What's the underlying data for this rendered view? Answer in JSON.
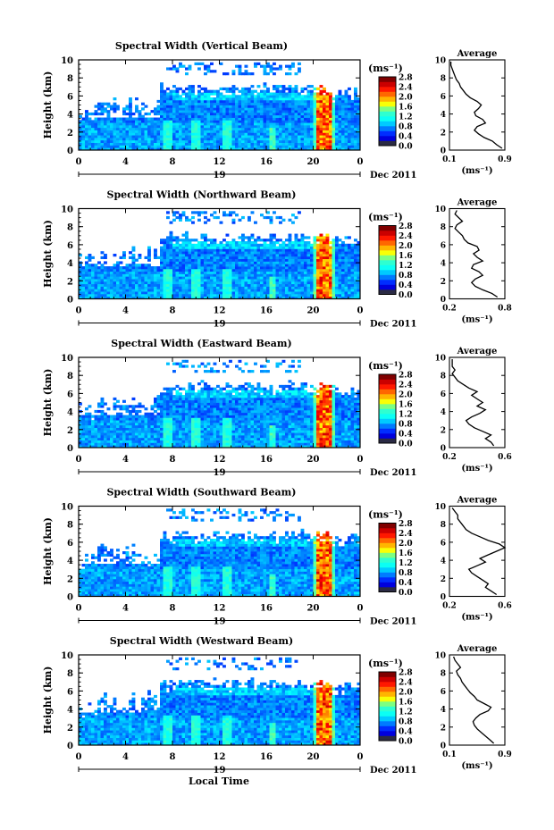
{
  "figure": {
    "xlabel": "Local Time",
    "date_label": "Dec 2011",
    "day_label": "19",
    "x_ticks": [
      "0",
      "4",
      "8",
      "12",
      "16",
      "20",
      "0"
    ],
    "y_ticks": [
      "0",
      "2",
      "4",
      "6",
      "8",
      "10"
    ],
    "ylabel": "Height (km)",
    "cbar_unit": "(ms⁻¹)",
    "cbar_ticks": [
      "0.0",
      "0.4",
      "0.8",
      "1.2",
      "1.6",
      "2.0",
      "2.4",
      "2.8"
    ],
    "avg_title": "Average",
    "avg_unit": "(ms⁻¹)"
  },
  "chart_data": [
    {
      "type": "heatmap",
      "title": "Spectral Width (Vertical Beam)",
      "xlabel": "",
      "ylabel": "Height (km)",
      "xlim": [
        0,
        24
      ],
      "ylim": [
        0,
        10
      ],
      "colorbar_range": [
        0.0,
        2.8
      ],
      "profile": {
        "title": "Average",
        "xlim": [
          0.1,
          0.9
        ],
        "xticks": [
          "0.1",
          "0.9"
        ],
        "heights": [
          0.2,
          0.6,
          1.0,
          1.4,
          1.8,
          2.2,
          2.6,
          3.0,
          3.4,
          3.8,
          4.2,
          4.6,
          5.0,
          5.4,
          5.8,
          6.2,
          6.6,
          7.0,
          7.4,
          7.8,
          8.2,
          8.6,
          9.0,
          9.4,
          9.8
        ],
        "values": [
          0.86,
          0.78,
          0.72,
          0.6,
          0.52,
          0.46,
          0.5,
          0.62,
          0.58,
          0.48,
          0.46,
          0.52,
          0.56,
          0.5,
          0.4,
          0.34,
          0.3,
          0.26,
          0.24,
          0.2,
          0.18,
          0.16,
          0.14,
          0.12,
          0.12
        ]
      }
    },
    {
      "type": "heatmap",
      "title": "Spectral Width (Northward Beam)",
      "xlabel": "",
      "ylabel": "Height (km)",
      "xlim": [
        0,
        24
      ],
      "ylim": [
        0,
        10
      ],
      "colorbar_range": [
        0.0,
        2.8
      ],
      "profile": {
        "title": "Average",
        "xlim": [
          0.2,
          0.8
        ],
        "xticks": [
          "0.2",
          "0.8"
        ],
        "heights": [
          0.2,
          0.6,
          1.0,
          1.4,
          1.8,
          2.2,
          2.6,
          3.0,
          3.4,
          3.8,
          4.2,
          4.6,
          5.0,
          5.4,
          5.8,
          6.2,
          6.6,
          7.0,
          7.4,
          7.8,
          8.2,
          8.6,
          9.0,
          9.4,
          9.8
        ],
        "values": [
          0.72,
          0.66,
          0.56,
          0.48,
          0.44,
          0.48,
          0.56,
          0.52,
          0.44,
          0.46,
          0.56,
          0.5,
          0.46,
          0.52,
          0.5,
          0.4,
          0.36,
          0.34,
          0.3,
          0.26,
          0.28,
          0.34,
          0.3,
          0.26,
          0.28
        ]
      }
    },
    {
      "type": "heatmap",
      "title": "Spectral Width (Eastward Beam)",
      "xlabel": "",
      "ylabel": "Height (km)",
      "xlim": [
        0,
        24
      ],
      "ylim": [
        0,
        10
      ],
      "colorbar_range": [
        0.0,
        2.8
      ],
      "profile": {
        "title": "Average",
        "xlim": [
          0.2,
          0.6
        ],
        "xticks": [
          "0.2",
          "0.6"
        ],
        "heights": [
          0.2,
          0.6,
          1.0,
          1.4,
          1.8,
          2.2,
          2.6,
          3.0,
          3.4,
          3.8,
          4.2,
          4.6,
          5.0,
          5.4,
          5.8,
          6.2,
          6.6,
          7.0,
          7.4,
          7.8,
          8.2,
          8.6,
          9.0,
          9.4,
          9.8
        ],
        "values": [
          0.52,
          0.5,
          0.46,
          0.5,
          0.44,
          0.38,
          0.34,
          0.32,
          0.36,
          0.42,
          0.46,
          0.4,
          0.44,
          0.4,
          0.36,
          0.4,
          0.34,
          0.3,
          0.26,
          0.24,
          0.22,
          0.24,
          0.22,
          0.22,
          0.22
        ]
      }
    },
    {
      "type": "heatmap",
      "title": "Spectral Width (Southward Beam)",
      "xlabel": "",
      "ylabel": "Height (km)",
      "xlim": [
        0,
        24
      ],
      "ylim": [
        0,
        10
      ],
      "colorbar_range": [
        0.0,
        2.8
      ],
      "profile": {
        "title": "Average",
        "xlim": [
          0.2,
          0.6
        ],
        "xticks": [
          "0.2",
          "0.6"
        ],
        "heights": [
          0.2,
          0.6,
          1.0,
          1.4,
          1.8,
          2.2,
          2.6,
          3.0,
          3.4,
          3.8,
          4.2,
          4.6,
          5.0,
          5.4,
          5.8,
          6.2,
          6.6,
          7.0,
          7.4,
          7.8,
          8.2,
          8.6,
          9.0,
          9.4,
          9.8
        ],
        "values": [
          0.54,
          0.5,
          0.46,
          0.48,
          0.44,
          0.4,
          0.36,
          0.34,
          0.4,
          0.46,
          0.42,
          0.48,
          0.54,
          0.6,
          0.56,
          0.48,
          0.42,
          0.36,
          0.32,
          0.3,
          0.28,
          0.26,
          0.26,
          0.24,
          0.22
        ]
      }
    },
    {
      "type": "heatmap",
      "title": "Spectral Width (Westward Beam)",
      "xlabel": "Local Time",
      "ylabel": "Height (km)",
      "xlim": [
        0,
        24
      ],
      "ylim": [
        0,
        10
      ],
      "colorbar_range": [
        0.0,
        2.8
      ],
      "profile": {
        "title": "Average",
        "xlim": [
          0.1,
          0.9
        ],
        "xticks": [
          "0.1",
          "0.9"
        ],
        "heights": [
          0.2,
          0.6,
          1.0,
          1.4,
          1.8,
          2.2,
          2.6,
          3.0,
          3.4,
          3.8,
          4.2,
          4.6,
          5.0,
          5.4,
          5.8,
          6.2,
          6.6,
          7.0,
          7.4,
          7.8,
          8.2,
          8.6,
          9.0,
          9.4,
          9.8
        ],
        "values": [
          0.74,
          0.68,
          0.62,
          0.56,
          0.5,
          0.46,
          0.44,
          0.48,
          0.54,
          0.66,
          0.7,
          0.6,
          0.5,
          0.46,
          0.4,
          0.36,
          0.32,
          0.28,
          0.26,
          0.22,
          0.2,
          0.26,
          0.22,
          0.18,
          0.16
        ]
      }
    }
  ]
}
